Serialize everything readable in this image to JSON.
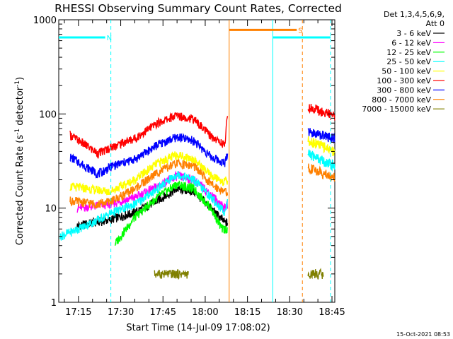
{
  "chart_data": {
    "type": "line",
    "title": "RHESSI Observing Summary Count Rates, Corrected",
    "xlabel": "Start Time (14-Jul-09 17:08:02)",
    "ylabel_main": "Corrected Count Rate (s",
    "ylabel_sup1": "-1",
    "ylabel_mid": " detector",
    "ylabel_sup2": "-1",
    "ylabel_end": ")",
    "y_scale": "log",
    "ylim": [
      1,
      1000
    ],
    "xlim_min": [
      8.0,
      106.0
    ],
    "y_ticks": [
      {
        "v": 1,
        "label": "1"
      },
      {
        "v": 10,
        "label": "10"
      },
      {
        "v": 100,
        "label": "100"
      },
      {
        "v": 1000,
        "label": "1000"
      }
    ],
    "x_ticks": [
      {
        "v": 15,
        "label": "17:15"
      },
      {
        "v": 30,
        "label": "17:30"
      },
      {
        "v": 45,
        "label": "17:45"
      },
      {
        "v": 60,
        "label": "18:00"
      },
      {
        "v": 75,
        "label": "18:15"
      },
      {
        "v": 90,
        "label": "18:30"
      },
      {
        "v": 105,
        "label": "18:45"
      }
    ],
    "legend_header": [
      "Det 1,3,4,5,6,9,",
      "Att 0"
    ],
    "legend_position": "right",
    "series": [
      {
        "name": "3 - 6 keV",
        "color": "#000000",
        "values_pre": {
          "start": 14.5,
          "curve": [
            [
              14.5,
              6.5
            ],
            [
              26,
              7.5
            ],
            [
              35,
              9
            ],
            [
              43,
              12
            ],
            [
              50,
              16
            ],
            [
              56,
              15
            ],
            [
              62,
              10
            ],
            [
              67,
              7
            ],
            [
              68,
              7
            ]
          ]
        }
      },
      {
        "name": "6 - 12 keV",
        "color": "#ff00ff",
        "values_pre": {
          "start": 14.5,
          "curve": [
            [
              14.5,
              10
            ],
            [
              26,
              11
            ],
            [
              35,
              13
            ],
            [
              43,
              17
            ],
            [
              50,
              22
            ],
            [
              56,
              20
            ],
            [
              62,
              14
            ],
            [
              67,
              10
            ],
            [
              68,
              11
            ]
          ]
        }
      },
      {
        "name": "12 - 25 keV",
        "color": "#00ff00",
        "values_pre": {
          "start": 28,
          "curve": [
            [
              28,
              4.2
            ],
            [
              35,
              8
            ],
            [
              43,
              13
            ],
            [
              50,
              18
            ],
            [
              56,
              16
            ],
            [
              62,
              10
            ],
            [
              66,
              6
            ],
            [
              68,
              6
            ]
          ]
        }
      },
      {
        "name": "25 - 50 keV",
        "color": "#00ffff",
        "values_pre": {
          "start": 8.5,
          "curve": [
            [
              8.5,
              5
            ],
            [
              20,
              7
            ],
            [
              27,
              9
            ],
            [
              35,
              11
            ],
            [
              43,
              16
            ],
            [
              50,
              23
            ],
            [
              56,
              20
            ],
            [
              62,
              13
            ],
            [
              67,
              9
            ],
            [
              68,
              12
            ]
          ]
        }
      },
      {
        "name": "50 - 100 keV",
        "color": "#ffff00",
        "values_pre": {
          "start": 12,
          "curve": [
            [
              12,
              17
            ],
            [
              26,
              15
            ],
            [
              35,
              20
            ],
            [
              43,
              30
            ],
            [
              50,
              37
            ],
            [
              56,
              33
            ],
            [
              62,
              22
            ],
            [
              67,
              19
            ],
            [
              68,
              20
            ]
          ]
        }
      },
      {
        "name": "100 - 300 keV",
        "color": "#ff0000",
        "values_pre": {
          "start": 12,
          "curve": [
            [
              12,
              60
            ],
            [
              22,
              38
            ],
            [
              27,
              45
            ],
            [
              35,
              55
            ],
            [
              43,
              80
            ],
            [
              50,
              97
            ],
            [
              56,
              88
            ],
            [
              62,
              58
            ],
            [
              67,
              47
            ],
            [
              68,
              110
            ]
          ]
        }
      },
      {
        "name": "300 - 800 keV",
        "color": "#0000ff",
        "values_pre": {
          "start": 12,
          "curve": [
            [
              12,
              35
            ],
            [
              22,
              23
            ],
            [
              27,
              28
            ],
            [
              35,
              33
            ],
            [
              43,
              47
            ],
            [
              50,
              57
            ],
            [
              56,
              52
            ],
            [
              62,
              35
            ],
            [
              67,
              30
            ],
            [
              68,
              40
            ]
          ]
        }
      },
      {
        "name": "800 - 7000 keV",
        "color": "#ff8000",
        "values_pre": {
          "start": 12,
          "curve": [
            [
              12,
              12
            ],
            [
              22,
              11
            ],
            [
              27,
              12
            ],
            [
              35,
              16
            ],
            [
              43,
              24
            ],
            [
              50,
              30
            ],
            [
              56,
              28
            ],
            [
              62,
              18
            ],
            [
              67,
              15
            ],
            [
              68,
              15
            ]
          ]
        }
      },
      {
        "name": "7000 - 15000 keV",
        "color": "#808000",
        "values_pre": {
          "start": 42,
          "curve": [
            [
              42,
              2
            ],
            [
              54,
              2
            ]
          ]
        }
      }
    ],
    "post_segments": [
      {
        "color": "#ff0000",
        "x": [
          96.5,
          106
        ],
        "y": [
          120,
          95
        ]
      },
      {
        "color": "#0000ff",
        "x": [
          96.5,
          106
        ],
        "y": [
          65,
          55
        ]
      },
      {
        "color": "#ffff00",
        "x": [
          96.5,
          106
        ],
        "y": [
          53,
          40
        ]
      },
      {
        "color": "#00ffff",
        "x": [
          96.5,
          106
        ],
        "y": [
          38,
          28
        ]
      },
      {
        "color": "#ff8000",
        "x": [
          96.5,
          106
        ],
        "y": [
          27,
          21
        ]
      },
      {
        "color": "#808000",
        "x": [
          96.5,
          102
        ],
        "y": [
          2,
          2
        ]
      }
    ],
    "flags": [
      {
        "label": "N",
        "color": "#00ffff",
        "x_start": 8.0,
        "x_end": 26.5,
        "y": 650
      },
      {
        "label": "S",
        "color": "#ff8000",
        "x_start": 68.5,
        "x_end": 94.5,
        "y": 780
      },
      {
        "label": "",
        "color": "#00ffff",
        "x_start": 84.0,
        "x_end": 104.5,
        "y": 650
      }
    ],
    "vlines": [
      {
        "x": 26.5,
        "color": "#00ffff",
        "dashed": true
      },
      {
        "x": 68.5,
        "color": "#ff8000",
        "dashed": false
      },
      {
        "x": 84.0,
        "color": "#00ffff",
        "dashed": false
      },
      {
        "x": 94.5,
        "color": "#ff8000",
        "dashed": true
      },
      {
        "x": 104.5,
        "color": "#00ffff",
        "dashed": true
      }
    ],
    "timestamp": "15-Oct-2021 08:53"
  }
}
